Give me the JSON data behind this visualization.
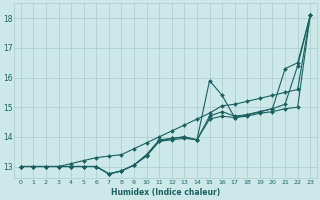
{
  "title": "",
  "xlabel": "Humidex (Indice chaleur)",
  "xlim": [
    -0.5,
    23.5
  ],
  "ylim": [
    12.6,
    18.5
  ],
  "yticks": [
    13,
    14,
    15,
    16,
    17,
    18
  ],
  "xticks": [
    0,
    1,
    2,
    3,
    4,
    5,
    6,
    7,
    8,
    9,
    10,
    11,
    12,
    13,
    14,
    15,
    16,
    17,
    18,
    19,
    20,
    21,
    22,
    23
  ],
  "bg_color": "#cce8e8",
  "grid_color": "#aacccc",
  "line_color": "#1a6060",
  "series": [
    [
      13.0,
      13.0,
      13.0,
      13.0,
      13.0,
      13.0,
      13.0,
      12.75,
      12.85,
      13.05,
      13.4,
      13.9,
      13.95,
      14.0,
      13.9,
      14.7,
      14.85,
      14.7,
      14.75,
      14.85,
      14.95,
      16.3,
      16.5,
      18.1
    ],
    [
      13.0,
      13.0,
      13.0,
      13.0,
      13.0,
      13.0,
      13.0,
      12.75,
      12.85,
      13.05,
      13.4,
      13.85,
      13.9,
      13.95,
      13.9,
      14.6,
      14.7,
      14.65,
      14.7,
      14.8,
      14.85,
      14.95,
      15.0,
      18.1
    ],
    [
      13.0,
      13.0,
      13.0,
      13.0,
      13.1,
      13.2,
      13.3,
      13.35,
      13.4,
      13.6,
      13.8,
      14.0,
      14.2,
      14.4,
      14.6,
      14.8,
      15.05,
      15.1,
      15.2,
      15.3,
      15.4,
      15.5,
      15.6,
      18.1
    ],
    [
      13.0,
      13.0,
      13.0,
      13.0,
      13.0,
      13.0,
      13.0,
      12.75,
      12.85,
      13.05,
      13.35,
      13.85,
      13.95,
      14.0,
      13.9,
      15.9,
      15.4,
      14.65,
      14.75,
      14.85,
      14.95,
      15.1,
      16.4,
      18.1
    ]
  ]
}
